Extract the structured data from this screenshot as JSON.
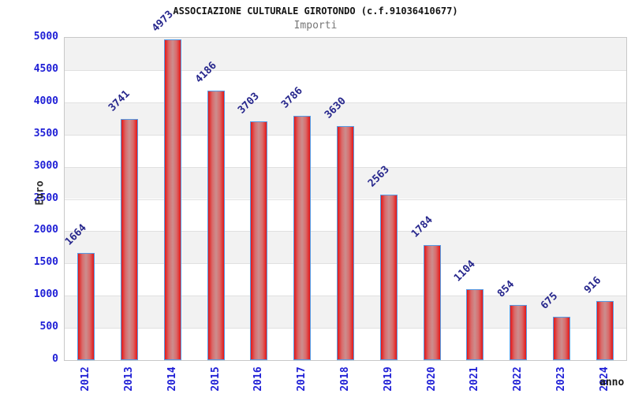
{
  "chart_data": {
    "type": "bar",
    "title": "ASSOCIAZIONE CULTURALE GIROTONDO (c.f.91036410677)",
    "subtitle": "Importi",
    "xlabel": "anno",
    "ylabel": "Euro",
    "categories": [
      "2012",
      "2013",
      "2014",
      "2015",
      "2016",
      "2017",
      "2018",
      "2019",
      "2020",
      "2021",
      "2022",
      "2023",
      "2024"
    ],
    "values": [
      1664,
      3741,
      4973,
      4186,
      3703,
      3786,
      3630,
      2563,
      1784,
      1104,
      854,
      675,
      916
    ],
    "yticks": [
      "5000",
      "4500",
      "4000",
      "3500",
      "3000",
      "2500",
      "2000",
      "1500",
      "1000",
      "500",
      "0"
    ],
    "ylim": [
      0,
      5000
    ],
    "ytick_step": 500,
    "grid": "alternating horizontal bands every 500, gray/white, light gridlines",
    "legend": "none",
    "colors": {
      "bar_edge": "#e41717",
      "bar_center": "#cc8e8e",
      "bar_border": "#559ce6",
      "tick_label": "#1f1fd6",
      "value_label": "#26268c",
      "band_gray": "#f2f2f2",
      "plot_border": "#c8c8c8",
      "title": "#141414",
      "subtitle": "#767676"
    }
  }
}
